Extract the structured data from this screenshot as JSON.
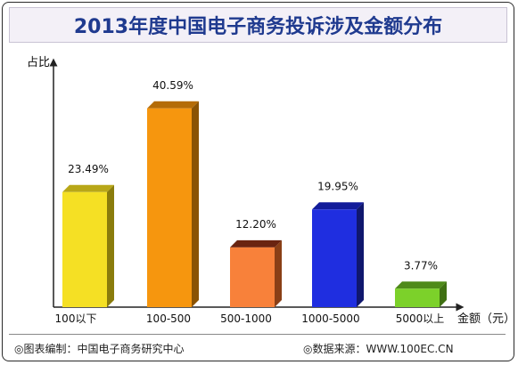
{
  "title": "2013年度中国电子商务投诉涉及金额分布",
  "footer": {
    "source_left": "◎图表编制：中国电子商务研究中心",
    "source_right": "◎数据来源：WWW.100EC.CN"
  },
  "chart_data": {
    "type": "bar",
    "title": "2013年度中国电子商务投诉涉及金额分布",
    "ylabel": "占比",
    "xlabel": "金额（元）",
    "ylim": [
      0,
      50
    ],
    "grid": false,
    "categories": [
      "100以下",
      "100-500",
      "500-1000",
      "1000-5000",
      "5000以上"
    ],
    "values": [
      23.49,
      40.59,
      12.2,
      19.95,
      3.77
    ],
    "value_labels": [
      "23.49%",
      "40.59%",
      "12.20%",
      "19.95%",
      "3.77%"
    ],
    "colors": {
      "front": [
        "#f5e024",
        "#f6960e",
        "#f8813a",
        "#1f2ee0",
        "#7cd12a"
      ],
      "side": [
        "#8a7c0c",
        "#8a5304",
        "#8a3f16",
        "#10176e",
        "#3f7012"
      ],
      "top": [
        "#b8a718",
        "#b46c07",
        "#6a2410",
        "#131c9a",
        "#4f8a1a"
      ]
    }
  }
}
